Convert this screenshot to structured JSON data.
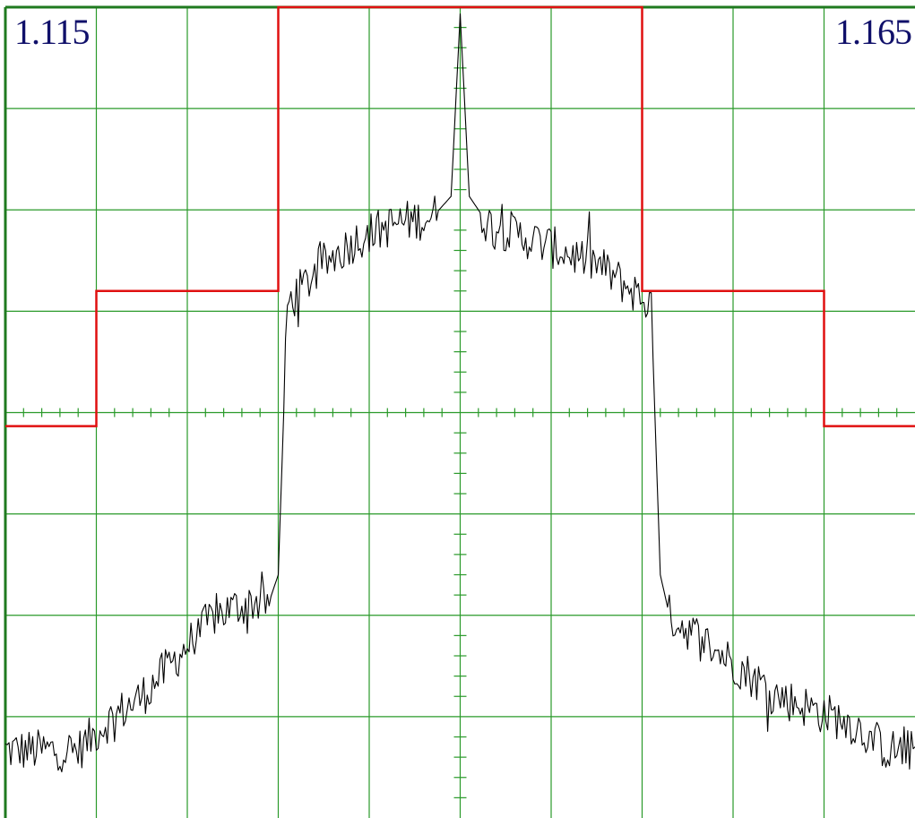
{
  "colors": {
    "grid": "#2a9a2a",
    "frame": "#1f7a1f",
    "mask": "#e01010",
    "trace": "#000000",
    "label": "#10106a"
  },
  "labels": {
    "left_frequency": "1.115",
    "right_frequency": "1.165"
  },
  "chart_data": {
    "type": "line",
    "title": "",
    "xlabel": "",
    "ylabel": "",
    "xlim": [
      1.115,
      1.165
    ],
    "ylim": [
      -60,
      0
    ],
    "grid": true,
    "divisions": {
      "x": 10,
      "y": 8
    },
    "series": [
      {
        "role": "mask",
        "x": [
          1.115,
          1.12,
          1.12,
          1.13,
          1.13,
          1.15,
          1.15,
          1.16,
          1.16,
          1.165
        ],
        "y": [
          -31,
          -31,
          -21,
          -21,
          0,
          0,
          -21,
          -21,
          -31,
          -31
        ]
      },
      {
        "role": "spectrum",
        "x": [
          1.115,
          1.117,
          1.119,
          1.1205,
          1.1225,
          1.1245,
          1.1265,
          1.1285,
          1.1295,
          1.13,
          1.1305,
          1.1325,
          1.1345,
          1.1365,
          1.1385,
          1.1395,
          1.14,
          1.1405,
          1.1415,
          1.1435,
          1.1455,
          1.1475,
          1.1495,
          1.1505,
          1.151,
          1.1515,
          1.1535,
          1.1555,
          1.1575,
          1.1595,
          1.1615,
          1.1635,
          1.165
        ],
        "y": [
          -55,
          -55,
          -55,
          -53,
          -51,
          -48,
          -45,
          -44,
          -44,
          -42,
          -22,
          -19,
          -17,
          -16,
          -15.5,
          -14,
          -0.5,
          -14,
          -16,
          -17,
          -18,
          -19,
          -21,
          -22,
          -42,
          -45,
          -47,
          -49,
          -51,
          -52,
          -53,
          -55,
          -55
        ]
      }
    ]
  }
}
